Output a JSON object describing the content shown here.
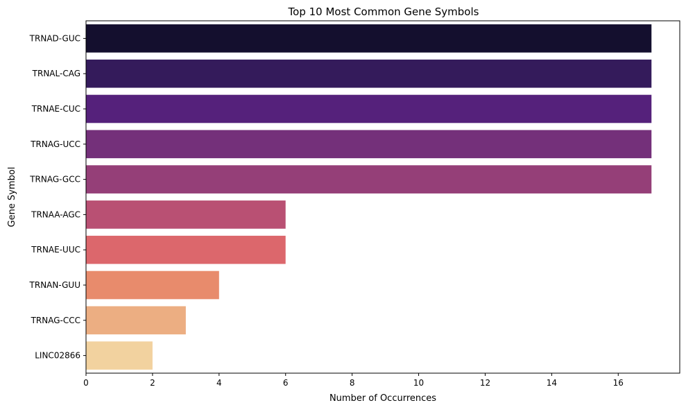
{
  "chart_data": {
    "type": "bar",
    "orientation": "horizontal",
    "title": "Top 10 Most Common Gene Symbols",
    "xlabel": "Number of Occurrences",
    "ylabel": "Gene Symbol",
    "categories": [
      "TRNAD-GUC",
      "TRNAL-CAG",
      "TRNAE-CUC",
      "TRNAG-UCC",
      "TRNAG-GCC",
      "TRNAA-AGC",
      "TRNAE-UUC",
      "TRNAN-GUU",
      "TRNAG-CCC",
      "LINC02866"
    ],
    "values": [
      17,
      17,
      17,
      17,
      17,
      6,
      6,
      4,
      3,
      2
    ],
    "colors": [
      "#140f2e",
      "#341b5b",
      "#55217b",
      "#74307a",
      "#953f78",
      "#b95073",
      "#dc676c",
      "#e88b6c",
      "#ecae82",
      "#f2d29f"
    ],
    "xlim": [
      0,
      17.85
    ],
    "xticks": [
      0,
      2,
      4,
      6,
      8,
      10,
      12,
      14,
      16
    ],
    "grid": false,
    "legend": "none"
  }
}
